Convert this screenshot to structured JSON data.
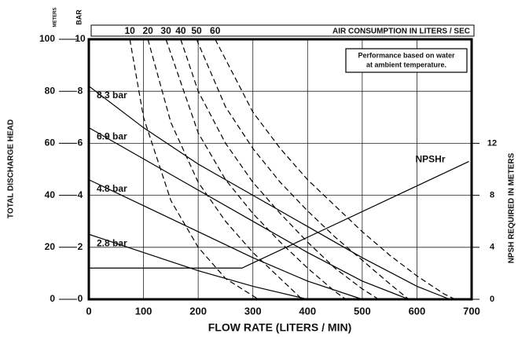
{
  "chart_data": {
    "type": "line",
    "x_label": "FLOW RATE (LITERS / MIN)",
    "y_label": "TOTAL DISCHARGE HEAD",
    "y_unit": "METERS",
    "bar_unit": "BAR",
    "y2_label": "NPSH REQUIRED IN METERS",
    "top_axis_label": "AIR CONSUMPTION IN LITERS / SEC",
    "annotation": [
      "Performance based on water",
      "at ambient temperature."
    ],
    "xlim": [
      0,
      700
    ],
    "xticks": [
      0,
      100,
      200,
      300,
      400,
      500,
      600,
      700
    ],
    "ylim": [
      0,
      100
    ],
    "yticks": [
      0,
      20,
      40,
      60,
      80,
      100
    ],
    "bar_lim": [
      0,
      10
    ],
    "bar_ticks": [
      0,
      2,
      4,
      6,
      8,
      10
    ],
    "y2lim": [
      0,
      20
    ],
    "y2ticks": [
      0,
      4,
      8,
      12
    ],
    "grid": true,
    "color": "#000000",
    "series": [
      {
        "name": "8.3 bar",
        "x": [
          0,
          100,
          200,
          300,
          400,
          500,
          600,
          660
        ],
        "values": [
          82,
          66,
          52,
          40,
          28,
          16,
          5,
          0
        ]
      },
      {
        "name": "6.9 bar",
        "x": [
          0,
          100,
          200,
          300,
          400,
          500,
          585
        ],
        "values": [
          66,
          54,
          42,
          30,
          18,
          7,
          0
        ]
      },
      {
        "name": "4.8 bar",
        "x": [
          0,
          100,
          200,
          300,
          400,
          500
        ],
        "values": [
          46,
          36,
          26,
          16,
          7,
          0
        ]
      },
      {
        "name": "2.8 bar",
        "x": [
          0,
          100,
          200,
          300,
          400
        ],
        "values": [
          25,
          18,
          11,
          5,
          0
        ]
      },
      {
        "name": "10",
        "dash": true,
        "x": [
          75,
          100,
          150,
          200,
          250,
          310
        ],
        "values": [
          100,
          70,
          38,
          20,
          8,
          0
        ]
      },
      {
        "name": "20",
        "dash": true,
        "x": [
          108,
          150,
          200,
          250,
          300,
          350,
          390
        ],
        "values": [
          100,
          68,
          45,
          30,
          18,
          8,
          0
        ]
      },
      {
        "name": "30",
        "dash": true,
        "x": [
          141,
          200,
          250,
          300,
          350,
          400,
          450,
          470
        ],
        "values": [
          100,
          64,
          46,
          33,
          22,
          12,
          3,
          0
        ]
      },
      {
        "name": "40",
        "dash": true,
        "x": [
          168,
          200,
          250,
          300,
          350,
          400,
          450,
          500,
          530
        ],
        "values": [
          100,
          80,
          60,
          45,
          33,
          22,
          12,
          4,
          0
        ]
      },
      {
        "name": "50",
        "dash": true,
        "x": [
          197,
          250,
          300,
          350,
          400,
          450,
          500,
          550,
          585
        ],
        "values": [
          100,
          74,
          58,
          45,
          34,
          24,
          15,
          6,
          0
        ]
      },
      {
        "name": "60",
        "dash": true,
        "x": [
          231,
          300,
          350,
          400,
          450,
          500,
          550,
          600,
          650,
          670
        ],
        "values": [
          100,
          72,
          58,
          46,
          36,
          26,
          17,
          9,
          2,
          0
        ]
      },
      {
        "name": "NPSHr",
        "axis": "y2",
        "x": [
          0,
          280,
          695
        ],
        "values": [
          2.4,
          2.4,
          10.6
        ]
      }
    ]
  }
}
